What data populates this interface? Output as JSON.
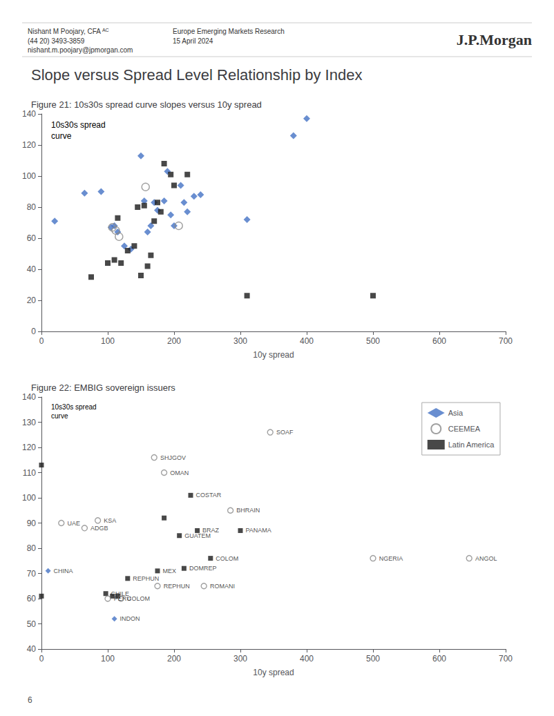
{
  "title": "Slope versus Spread Level Relationship by Index",
  "annotations": [
    "Nishant M Poojary, CFA",
    "AC",
    "(44 20) 3493-3859",
    "nishant.m.poojary@jpmorgan.com",
    "Europe Emerging Markets Research",
    "15 April 2024",
    "J.P.Morgan",
    "6"
  ],
  "chart_data": [
    {
      "type": "scatter",
      "title": "Figure 21: 10s30s spread curve slopes versus 10y spread",
      "xlabel": "10y spread",
      "xlim": [
        0,
        700
      ],
      "xticks": [
        0,
        100,
        200,
        300,
        400,
        500,
        600,
        700
      ],
      "ylim": [
        0,
        140
      ],
      "yticks": [
        0,
        20,
        40,
        60,
        80,
        100,
        120,
        140
      ],
      "grid": false,
      "annotations": [
        "10s30s spread\ncurve"
      ],
      "series": [
        {
          "color": "#4472c4",
          "marker": "diamond",
          "x": [
            20,
            65,
            90,
            105,
            110,
            115,
            125,
            135,
            150,
            155,
            160,
            165,
            170,
            175,
            185,
            190,
            195,
            200,
            210,
            215,
            220,
            230,
            240,
            310,
            380,
            400
          ],
          "values": [
            71,
            89,
            90,
            67,
            68,
            64,
            55,
            53,
            113,
            84,
            64,
            68,
            83,
            78,
            84,
            103,
            75,
            68,
            94,
            83,
            77,
            87,
            88,
            72,
            126,
            137
          ]
        },
        {
          "color": "#1a1a1a",
          "marker": "square",
          "x": [
            75,
            100,
            110,
            115,
            120,
            130,
            140,
            145,
            150,
            155,
            160,
            165,
            170,
            175,
            180,
            185,
            195,
            200,
            220,
            310,
            500
          ],
          "values": [
            35,
            44,
            46,
            73,
            44,
            52,
            55,
            80,
            36,
            81,
            42,
            49,
            71,
            83,
            77,
            108,
            101,
            94,
            101,
            23,
            23
          ]
        },
        {
          "color": "#888888",
          "marker": "open_circle",
          "x": [
            107,
            112,
            117,
            157,
            207
          ],
          "values": [
            67,
            65,
            61,
            93,
            68
          ]
        }
      ]
    },
    {
      "type": "scatter",
      "title": "Figure 22: EMBIG sovereign issuers",
      "xlabel": "10y spread",
      "xlim": [
        0,
        700
      ],
      "xticks": [
        0,
        100,
        200,
        300,
        400,
        500,
        600,
        700
      ],
      "ylim": [
        40,
        140
      ],
      "yticks": [
        40,
        50,
        60,
        70,
        80,
        90,
        100,
        110,
        120,
        130,
        140
      ],
      "grid": false,
      "legend": "upper right",
      "annotations": [
        "10s30s spread\ncurve"
      ],
      "series": [
        {
          "name": "Asia",
          "color": "#4472c4",
          "marker": "diamond",
          "x": [
            10,
            110
          ],
          "values": [
            71,
            52
          ],
          "labels": [
            "CHINA",
            "INDON"
          ]
        },
        {
          "name": "CEEMEA",
          "color": "#888888",
          "marker": "open_circle",
          "x": [
            30,
            65,
            85,
            170,
            185,
            245,
            175,
            345,
            285,
            500,
            645,
            100,
            120
          ],
          "values": [
            90,
            88,
            91,
            116,
            110,
            65,
            65,
            126,
            95,
            76,
            76,
            60,
            60
          ],
          "labels": [
            "UAE",
            "ADGB",
            "KSA",
            "SHJGOV",
            "OMAN",
            "ROMANI",
            "REPHUN",
            "SOAF",
            "BHRAIN",
            "NGERIA",
            "ANGOL",
            "PERU",
            "COLOM"
          ]
        },
        {
          "name": "Latin America",
          "color": "#1a1a1a",
          "marker": "square",
          "x": [
            97,
            130,
            175,
            215,
            255,
            225,
            235,
            300,
            208,
            107,
            115,
            185,
            0,
            0
          ],
          "values": [
            62,
            68,
            71,
            72,
            76,
            101,
            87,
            87,
            85,
            61,
            61,
            92,
            61,
            113
          ],
          "labels": [
            "CHILE",
            "REPHUN",
            "MEX",
            "DOMREP",
            "COLOM",
            "COSTAR",
            "BRAZ",
            "PANAMA",
            "GUATEM",
            null,
            null,
            null,
            null,
            null
          ]
        }
      ]
    }
  ]
}
